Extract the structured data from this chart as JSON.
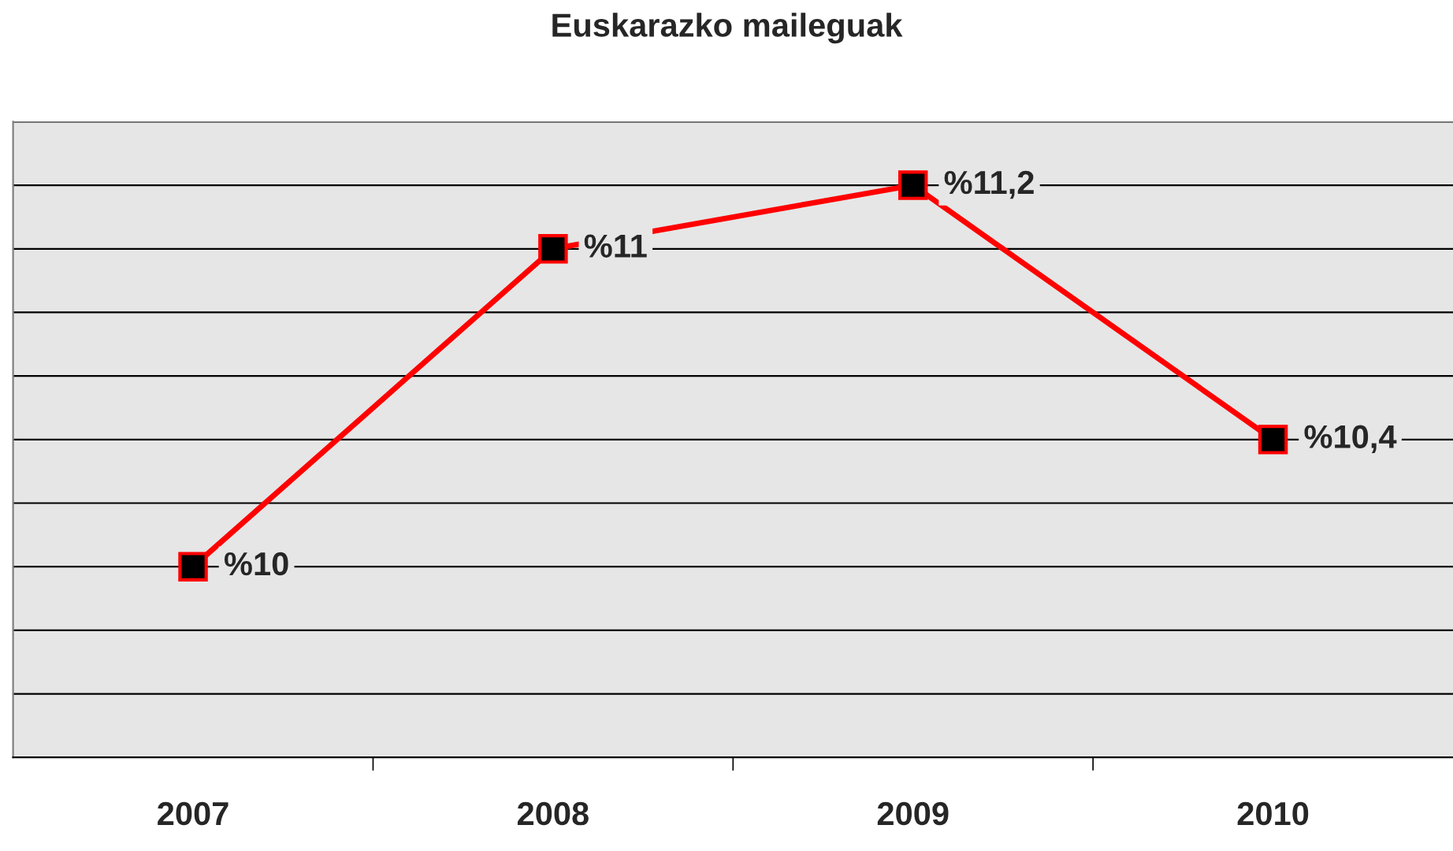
{
  "chart_data": {
    "type": "line",
    "title": "Euskarazko maileguak",
    "categories": [
      "2007",
      "2008",
      "2009",
      "2010"
    ],
    "series": [
      {
        "color": "#ff0000",
        "values": [
          10,
          11,
          11.2,
          10.4
        ],
        "value_labels": [
          "%10",
          "%11",
          "%11,2",
          "%10,4"
        ]
      }
    ],
    "ylim": [
      9.4,
      11.4
    ],
    "yticks": [
      {
        "value": 9.4,
        "label": null
      },
      {
        "value": 9.6,
        "label": null
      },
      {
        "value": 9.8,
        "label": null
      },
      {
        "value": 10,
        "label": null
      },
      {
        "value": 10.2,
        "label": null
      },
      {
        "value": 10.4,
        "label": null
      },
      {
        "value": 10.6,
        "label": null
      },
      {
        "value": 10.8,
        "label": null
      },
      {
        "value": 11,
        "label": null
      },
      {
        "value": 11.2,
        "label": null
      },
      {
        "value": 11.4,
        "label": null
      }
    ],
    "tick_labels": "x",
    "grid": "y",
    "marker": "square",
    "line_style": "solid"
  }
}
